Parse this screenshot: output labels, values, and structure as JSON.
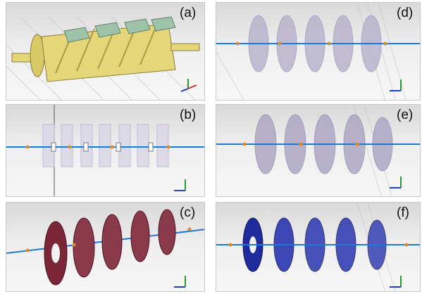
{
  "panels": [
    {
      "label": "(a)"
    },
    {
      "label": "(b)"
    },
    {
      "label": "(c)"
    },
    {
      "label": "(d)"
    },
    {
      "label": "(e)"
    },
    {
      "label": "(f)"
    }
  ],
  "axis_labels": {
    "x": "x",
    "y": "y",
    "z": "z"
  },
  "colors": {
    "gold_body": "#e6d67a",
    "green_block": "#9fc3a9",
    "maroon_ring": "#7a2638",
    "blue_ring": "#1f2a9c",
    "beam_blue": "#1e78d8",
    "beam_orange": "#e58a1f"
  }
}
